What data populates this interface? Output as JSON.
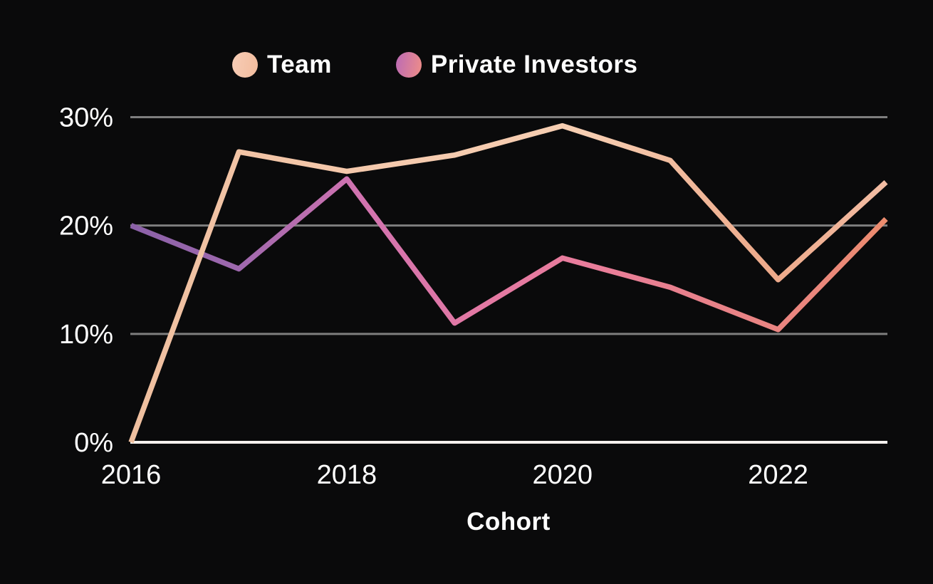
{
  "legend": {
    "items": [
      {
        "label": "Team",
        "dot_gradient": [
          "#f7cdb7",
          "#f2bc9d"
        ]
      },
      {
        "label": "Private Investors",
        "dot_gradient": [
          "#bb6ab6",
          "#ef8e87"
        ]
      }
    ]
  },
  "chart_data": {
    "type": "line",
    "title": "",
    "xlabel": "Cohort",
    "ylabel": "",
    "x": [
      2016,
      2017,
      2018,
      2019,
      2020,
      2021,
      2022,
      2023
    ],
    "xticks": {
      "values": [
        2016,
        2018,
        2020,
        2022
      ],
      "labels": [
        "2016",
        "2018",
        "2020",
        "2022"
      ]
    },
    "yticks": {
      "values": [
        0,
        10,
        20,
        30
      ],
      "labels": [
        "0%",
        "10%",
        "20%",
        "30%"
      ]
    },
    "ylim": [
      0,
      30
    ],
    "grid": "horizontal",
    "legend_position": "top",
    "colors": {
      "background": "#0a0a0b",
      "text": "#ffffff",
      "gridline": "#7e7e7e",
      "axis_line": "#f5f1ee"
    },
    "series": [
      {
        "name": "Team",
        "values": [
          0,
          26.8,
          25,
          26.5,
          29.2,
          26,
          15,
          24
        ],
        "gradient": [
          {
            "pos": 0,
            "color": "#efbf9f"
          },
          {
            "pos": 0.35,
            "color": "#f5caae"
          },
          {
            "pos": 0.6,
            "color": "#f6ceb2"
          },
          {
            "pos": 0.85,
            "color": "#eda98a"
          },
          {
            "pos": 1,
            "color": "#f3bda4"
          }
        ]
      },
      {
        "name": "Private Investors",
        "values": [
          20,
          16,
          24.3,
          11,
          17,
          14.3,
          10.4,
          20.6
        ],
        "gradient": [
          {
            "pos": 0,
            "color": "#8b61a8"
          },
          {
            "pos": 0.14,
            "color": "#9e68ae"
          },
          {
            "pos": 0.3,
            "color": "#d173b0"
          },
          {
            "pos": 0.45,
            "color": "#e278a4"
          },
          {
            "pos": 0.6,
            "color": "#e97d9c"
          },
          {
            "pos": 0.75,
            "color": "#e8818b"
          },
          {
            "pos": 0.9,
            "color": "#ea867d"
          },
          {
            "pos": 1,
            "color": "#ec8c6e"
          }
        ]
      }
    ]
  }
}
